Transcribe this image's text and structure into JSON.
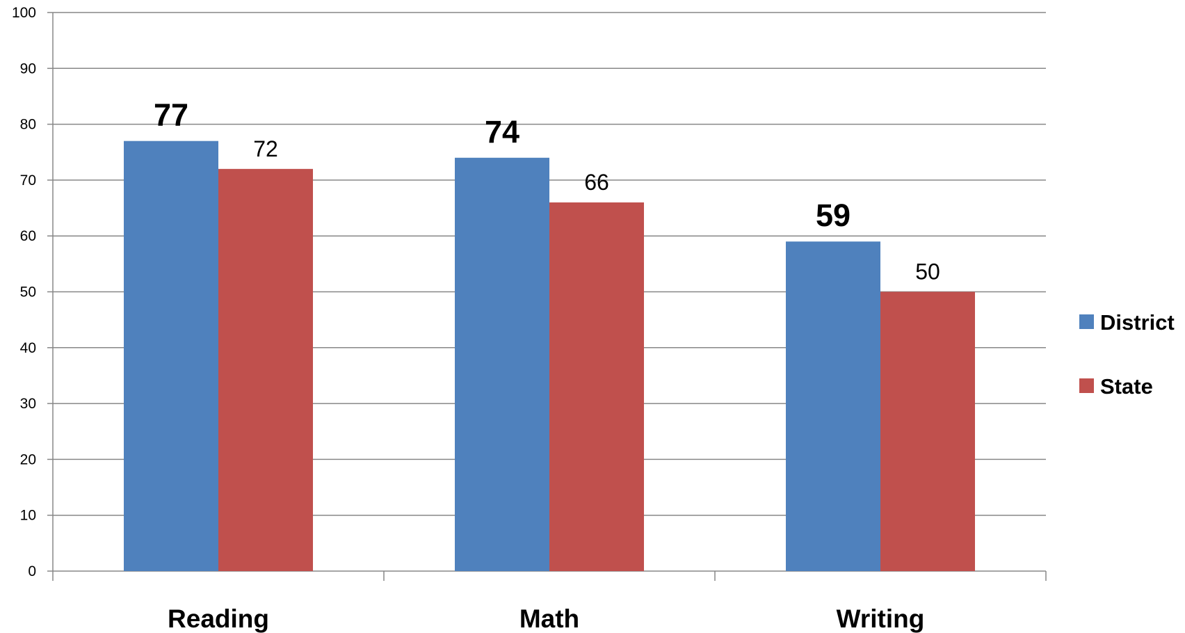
{
  "chart_data": {
    "type": "bar",
    "categories": [
      "Reading",
      "Math",
      "Writing"
    ],
    "series": [
      {
        "name": "District",
        "values": [
          77,
          74,
          59
        ],
        "color": "#4F81BD"
      },
      {
        "name": "State",
        "values": [
          72,
          66,
          50
        ],
        "color": "#C0504D"
      }
    ],
    "ylim": [
      0,
      100
    ],
    "yticks": [
      0,
      10,
      20,
      30,
      40,
      50,
      60,
      70,
      80,
      90,
      100
    ],
    "title": "",
    "xlabel": "",
    "ylabel": "",
    "grid": true,
    "legend_position": "right"
  }
}
